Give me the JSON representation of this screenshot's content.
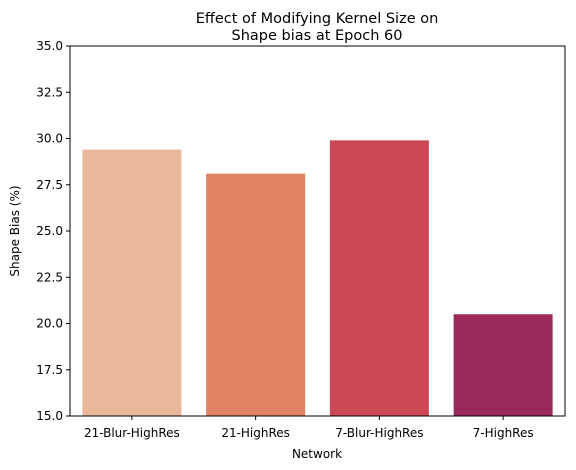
{
  "chart_data": {
    "type": "bar",
    "title": [
      "Effect of Modifying Kernel Size on",
      "Shape bias at Epoch 60"
    ],
    "xlabel": "Network",
    "ylabel": "Shape Bias (%)",
    "categories": [
      "21-Blur-HighRes",
      "21-HighRes",
      "7-Blur-HighRes",
      "7-HighRes"
    ],
    "values": [
      29.4,
      28.1,
      29.9,
      20.5
    ],
    "colors": [
      "#e9b79a",
      "#e18264",
      "#cc4855",
      "#9a2a57"
    ],
    "ylim": [
      15.0,
      35.0
    ],
    "yticks": [
      "15.0",
      "17.5",
      "20.0",
      "22.5",
      "25.0",
      "27.5",
      "30.0",
      "32.5",
      "35.0"
    ],
    "grid": false,
    "legend": "none"
  }
}
